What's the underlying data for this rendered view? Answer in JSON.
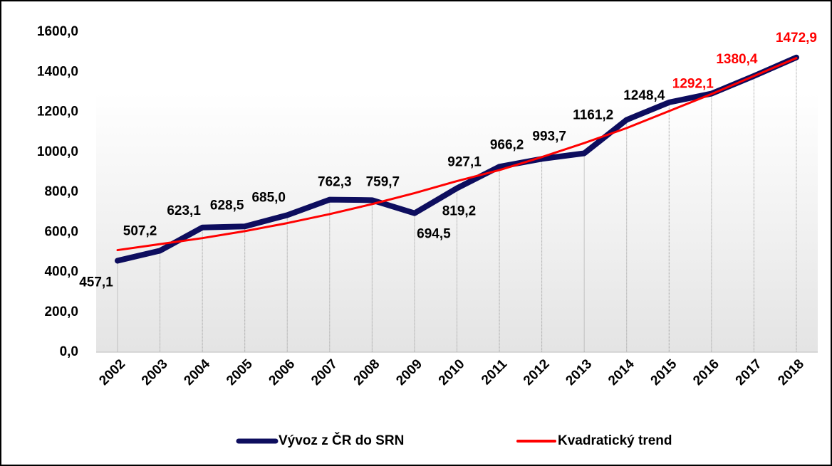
{
  "chart_data": {
    "type": "line",
    "categories": [
      "2002",
      "2003",
      "2004",
      "2005",
      "2006",
      "2007",
      "2008",
      "2009",
      "2010",
      "2011",
      "2012",
      "2013",
      "2014",
      "2015",
      "2016",
      "2017",
      "2018"
    ],
    "series": [
      {
        "name": "Vývoz z ČR do SRN",
        "color": "#0d0d5e",
        "values": [
          457.1,
          507.2,
          623.1,
          628.5,
          685.0,
          762.3,
          759.7,
          694.5,
          819.2,
          927.1,
          966.2,
          993.7,
          1161.2,
          1248.4,
          1292.1,
          1380.4,
          1472.9
        ],
        "value_labels": [
          "457,1",
          "507,2",
          "623,1",
          "628,5",
          "685,0",
          "762,3",
          "759,7",
          "694,5",
          "819,2",
          "927,1",
          "966,2",
          "993,7",
          "1161,2",
          "1248,4",
          "1292,1",
          "1380,4",
          "1472,9"
        ],
        "value_label_colors": [
          "#000",
          "#000",
          "#000",
          "#000",
          "#000",
          "#000",
          "#000",
          "#000",
          "#000",
          "#000",
          "#000",
          "#000",
          "#000",
          "#000",
          "#ff0000",
          "#ff0000",
          "#ff0000"
        ]
      },
      {
        "name": "Kvadratický trend",
        "color": "#ff0000",
        "values": [
          510,
          540,
          570,
          605,
          645,
          690,
          740,
          795,
          855,
          910,
          975,
          1045,
          1120,
          1205,
          1290,
          1380,
          1470
        ]
      }
    ],
    "ylim": [
      0,
      1600
    ],
    "yticks": [
      {
        "value": 0,
        "label": "0,0"
      },
      {
        "value": 200,
        "label": "200,0"
      },
      {
        "value": 400,
        "label": "400,0"
      },
      {
        "value": 600,
        "label": "600,0"
      },
      {
        "value": 800,
        "label": "800,0"
      },
      {
        "value": 1000,
        "label": "1000,0"
      },
      {
        "value": 1200,
        "label": "1200,0"
      },
      {
        "value": 1400,
        "label": "1400,0"
      },
      {
        "value": 1600,
        "label": "1600,0"
      }
    ],
    "legend": "bottom"
  }
}
